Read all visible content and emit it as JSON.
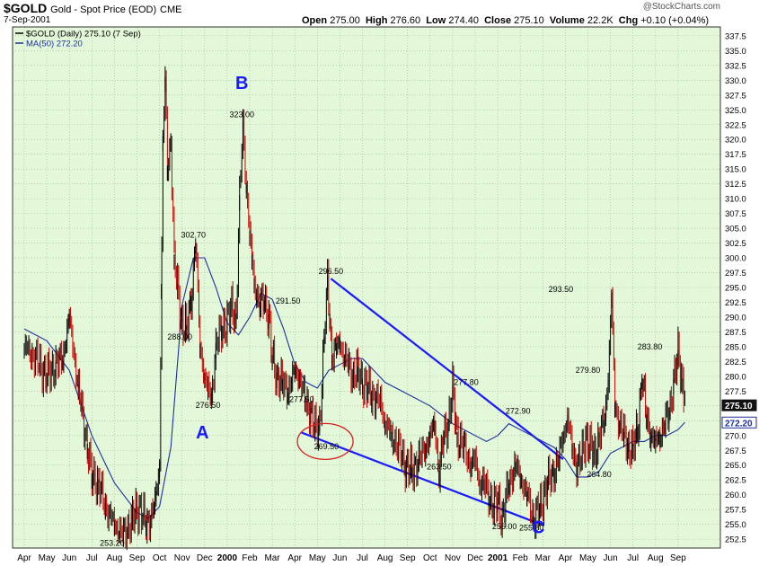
{
  "header": {
    "symbol": "$GOLD",
    "name": "Gold - Spot Price (EOD)",
    "exchange": "CME",
    "date": "7-Sep-2001",
    "copyright": "@StockCharts.com",
    "open_label": "Open",
    "open": "275.00",
    "high_label": "High",
    "high": "276.60",
    "low_label": "Low",
    "low": "274.40",
    "close_label": "Close",
    "close": "275.10",
    "volume_label": "Volume",
    "volume": "22.2K",
    "chg_label": "Chg",
    "chg": "+0.10 (+0.04%)"
  },
  "colors": {
    "background": "#e3f8d8",
    "grid": "#9bb98c",
    "price_up": "#000000",
    "price_down": "#cc0000",
    "ma": "#1c2fa0",
    "trendline": "#1a1aff",
    "annotation_ring": "#d62020",
    "wave_label": "#1a1aff"
  },
  "chart_data": {
    "type": "line",
    "title": "$GOLD Gold - Spot Price (EOD) CME",
    "ylim": [
      251,
      339
    ],
    "yticks": [
      252.5,
      255.0,
      257.5,
      260.0,
      262.5,
      265.0,
      267.5,
      270.0,
      272.5,
      275.0,
      277.5,
      280.0,
      282.5,
      285.0,
      287.5,
      290.0,
      292.5,
      295.0,
      297.5,
      300.0,
      302.5,
      305.0,
      307.5,
      310.0,
      312.5,
      315.0,
      317.5,
      320.0,
      322.5,
      325.0,
      327.5,
      330.0,
      332.5,
      335.0,
      337.5
    ],
    "ytick_labels": [
      "252.5",
      "255.0",
      "257.5",
      "260.0",
      "262.5",
      "265.0",
      "267.5",
      "270.0",
      "272.5",
      "275.0",
      "277.5",
      "280.0",
      "282.5",
      "285.0",
      "287.5",
      "290.0",
      "292.5",
      "295.0",
      "297.5",
      "300.0",
      "302.5",
      "305.0",
      "307.5",
      "310.0",
      "312.5",
      "315.0",
      "317.5",
      "320.0",
      "322.5",
      "325.0",
      "327.5",
      "330.0",
      "332.5",
      "335.0",
      "337.5"
    ],
    "x_tick_labels": [
      "Apr",
      "May",
      "Jun",
      "Jul",
      "Aug",
      "Sep",
      "Oct",
      "Nov",
      "Dec",
      "2000",
      "Feb",
      "Mar",
      "Apr",
      "May",
      "Jun",
      "Jul",
      "Aug",
      "Sep",
      "Oct",
      "Nov",
      "Dec",
      "2001",
      "Feb",
      "Mar",
      "Apr",
      "May",
      "Jun",
      "Jul",
      "Aug",
      "Sep"
    ],
    "x_tick_bold": [
      false,
      false,
      false,
      false,
      false,
      false,
      false,
      false,
      false,
      true,
      false,
      false,
      false,
      false,
      false,
      false,
      false,
      false,
      false,
      false,
      false,
      true,
      false,
      false,
      false,
      false,
      false,
      false,
      false,
      false
    ],
    "legend": [
      {
        "label": "$GOLD (Daily) 275.10 (7 Sep)",
        "type": "price"
      },
      {
        "label": "MA(50) 272.20",
        "type": "ma"
      }
    ],
    "legend_position": "top-left",
    "grid": true,
    "series": [
      {
        "name": "$GOLD (Daily)",
        "x_month_index": [
          0,
          0.5,
          1,
          1.4,
          1.7,
          2,
          2.4,
          2.8,
          3,
          3.3,
          3.6,
          4,
          4.4,
          4.8,
          5.1,
          5.4,
          5.6,
          5.75,
          5.85,
          6,
          6.08,
          6.15,
          6.25,
          6.35,
          6.5,
          6.65,
          6.8,
          7,
          7.2,
          7.4,
          7.6,
          7.8,
          8,
          8.15,
          8.3,
          8.5,
          8.75,
          9,
          9.2,
          9.4,
          9.55,
          9.7,
          9.85,
          10,
          10.1,
          10.2,
          10.3,
          10.45,
          10.65,
          10.85,
          11,
          11.2,
          11.45,
          11.7,
          12,
          12.2,
          12.45,
          12.7,
          12.9,
          13.1,
          13.3,
          13.45,
          13.55,
          13.65,
          13.85,
          14,
          14.2,
          14.4,
          14.6,
          14.8,
          15,
          15.2,
          15.4,
          15.6,
          15.8,
          16,
          16.3,
          16.6,
          16.9,
          17.2,
          17.5,
          17.8,
          18,
          18.2,
          18.4,
          18.6,
          18.8,
          19,
          19.2,
          19.5,
          19.8,
          20,
          20.2,
          20.4,
          20.6,
          20.8,
          21,
          21.2,
          21.5,
          21.8,
          22,
          22.3,
          22.6,
          22.9,
          23.2,
          23.5,
          23.7,
          23.9,
          24.1,
          24.3,
          24.5,
          24.7,
          24.9,
          25.1,
          25.3,
          25.5,
          25.7,
          25.8,
          25.9,
          26.05,
          26.2,
          26.4,
          26.6,
          26.8,
          27,
          27.2,
          27.4,
          27.6,
          27.8,
          28,
          28.2,
          28.4,
          28.6,
          28.8,
          29,
          29.2,
          29.3
        ],
        "values": [
          285,
          283,
          280,
          282,
          283,
          290,
          278,
          268,
          263,
          262,
          258,
          255,
          253.2,
          256,
          258,
          255,
          256,
          258,
          260,
          265,
          295,
          320,
          330,
          315,
          320,
          300,
          295,
          289,
          288,
          293,
          302.7,
          285,
          280,
          278,
          276.5,
          285,
          288,
          289,
          292,
          290,
          310,
          323,
          312,
          304,
          300,
          296,
          294,
          292,
          293,
          290,
          283,
          280,
          279,
          277.5,
          281,
          280,
          276,
          274,
          271,
          272,
          286,
          296.5,
          290,
          283,
          285,
          286,
          283,
          282,
          280,
          281,
          279,
          278,
          277,
          276,
          276,
          272,
          270,
          268,
          265,
          264,
          266,
          268,
          270,
          272,
          263.5,
          270,
          272,
          277.8,
          270,
          268,
          265,
          266,
          262,
          262,
          260,
          258,
          259,
          256.0,
          262,
          265,
          263,
          260,
          255.8,
          258,
          262,
          264,
          266,
          270,
          272.9,
          268,
          265,
          266,
          270,
          268,
          267,
          270,
          272,
          275,
          280,
          293.5,
          275,
          272,
          270,
          268,
          268,
          271,
          279.8,
          273,
          270,
          269,
          270,
          272,
          274,
          279,
          283.8,
          279,
          277,
          275.1
        ]
      },
      {
        "name": "MA(50)",
        "x_month_index": [
          0,
          1,
          2,
          3,
          4,
          5,
          5.5,
          6,
          6.5,
          7,
          7.5,
          8,
          8.5,
          9,
          9.5,
          10,
          10.5,
          11,
          11.5,
          12,
          12.5,
          13,
          13.5,
          14,
          14.5,
          15,
          15.5,
          16,
          17,
          18,
          19,
          20,
          20.5,
          21,
          21.5,
          22,
          22.5,
          23,
          23.5,
          24,
          24.5,
          25,
          25.5,
          26,
          26.5,
          27,
          27.5,
          28,
          28.5,
          29,
          29.3
        ],
        "values": [
          288,
          286,
          281,
          270,
          262,
          257,
          256,
          258,
          268,
          292,
          300,
          300,
          295,
          289,
          287,
          290,
          294,
          293,
          288,
          282,
          279,
          278,
          281,
          282,
          283,
          283,
          281,
          279,
          277,
          275,
          272,
          270,
          269,
          270,
          272,
          271,
          270,
          269,
          268,
          266,
          263,
          263,
          264,
          267,
          268,
          269,
          269,
          270,
          270,
          271,
          272.2
        ]
      }
    ],
    "annotations": [
      {
        "text": "253.20",
        "x_month_index": 3.9,
        "y": 253.2
      },
      {
        "text": "288.00",
        "x_month_index": 6.9,
        "y": 288
      },
      {
        "text": "302.70",
        "x_month_index": 7.5,
        "y": 302.7
      },
      {
        "text": "276.50",
        "x_month_index": 8.15,
        "y": 276.5
      },
      {
        "text": "323.00",
        "x_month_index": 9.65,
        "y": 323
      },
      {
        "text": "291.50",
        "x_month_index": 11.7,
        "y": 291.5
      },
      {
        "text": "277.50",
        "x_month_index": 12.3,
        "y": 277.5
      },
      {
        "text": "296.50",
        "x_month_index": 13.6,
        "y": 296.5
      },
      {
        "text": "269.50",
        "x_month_index": 13.4,
        "y": 269.5
      },
      {
        "text": "263.50",
        "x_month_index": 18.4,
        "y": 263.5
      },
      {
        "text": "277.80",
        "x_month_index": 19.6,
        "y": 277.8
      },
      {
        "text": "272.90",
        "x_month_index": 21.9,
        "y": 272.9
      },
      {
        "text": "256.00",
        "x_month_index": 21.3,
        "y": 256
      },
      {
        "text": "255.80",
        "x_month_index": 22.5,
        "y": 255.8
      },
      {
        "text": "293.50",
        "x_month_index": 23.8,
        "y": 293.5
      },
      {
        "text": "279.80",
        "x_month_index": 25.0,
        "y": 279.8
      },
      {
        "text": "264.80",
        "x_month_index": 25.5,
        "y": 264.8
      },
      {
        "text": "283.80",
        "x_month_index": 27.75,
        "y": 283.8
      }
    ],
    "wave_labels": [
      {
        "text": "A",
        "x_month_index": 7.9,
        "y": 269.5
      },
      {
        "text": "B",
        "x_month_index": 9.65,
        "y": 328.5
      },
      {
        "text": "C",
        "x_month_index": 22.8,
        "y": 253.5
      }
    ],
    "trendlines": [
      {
        "x1": 13.6,
        "y1": 296.5,
        "x2": 23.9,
        "y2": 266.0
      },
      {
        "x1": 12.3,
        "y1": 270.5,
        "x2": 23.05,
        "y2": 254.8
      }
    ],
    "circle_annotation": {
      "x_month_index": 13.35,
      "y": 269.0
    },
    "last_value_labels": [
      {
        "text": "275.10",
        "y": 275.1,
        "style": "dark"
      },
      {
        "text": "272.20",
        "y": 272.2,
        "style": "light"
      }
    ]
  }
}
